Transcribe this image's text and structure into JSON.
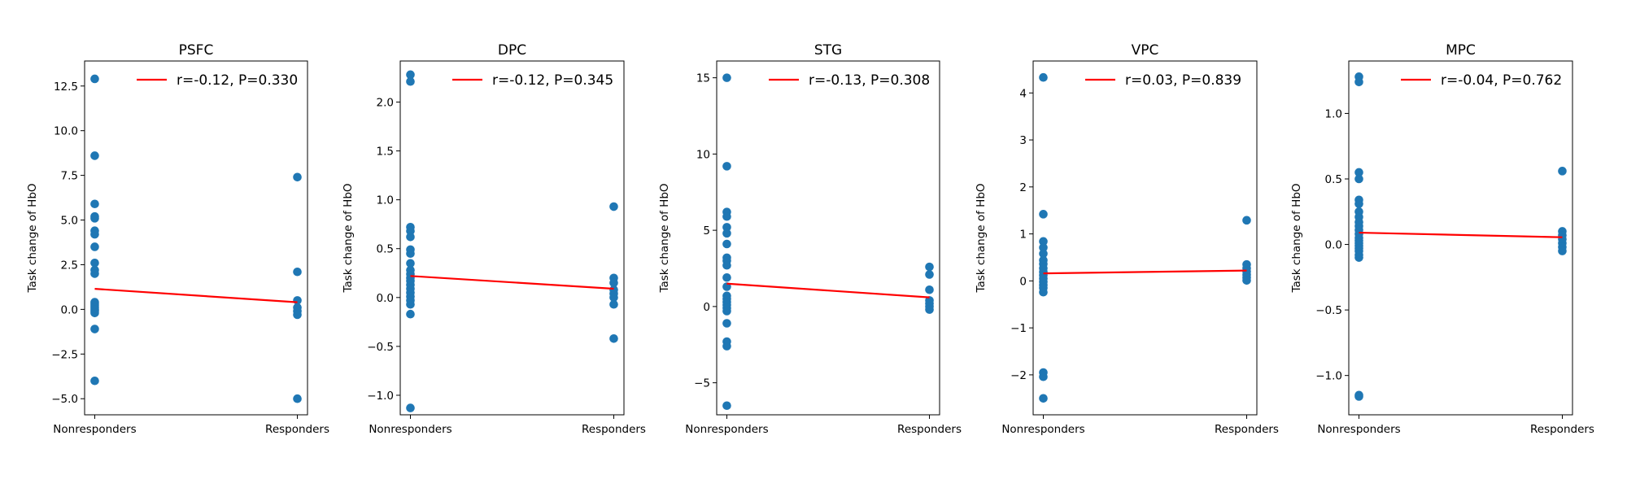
{
  "chart_data": [
    {
      "type": "scatter",
      "title": "PSFC",
      "xlabel": "",
      "ylabel": "Task change of HbO",
      "categories": [
        "Nonresponders",
        "Responders"
      ],
      "ylim": [
        -5.9,
        13.9
      ],
      "yticks": [
        -5.0,
        -2.5,
        0.0,
        2.5,
        5.0,
        7.5,
        10.0,
        12.5
      ],
      "ytick_labels": [
        "−5.0",
        "−2.5",
        "0.0",
        "2.5",
        "5.0",
        "7.5",
        "10.0",
        "12.5"
      ],
      "points": {
        "Nonresponders": [
          12.9,
          8.6,
          5.9,
          5.2,
          5.1,
          4.4,
          4.2,
          3.5,
          2.6,
          2.2,
          2.0,
          0.4,
          0.3,
          0.2,
          0.1,
          0.0,
          -0.1,
          -0.2,
          -1.1,
          -4.0
        ],
        "Responders": [
          7.4,
          2.1,
          0.5,
          0.1,
          -0.1,
          -0.3,
          -5.0
        ]
      },
      "fit_line": {
        "start": 1.15,
        "end": 0.4
      },
      "legend": {
        "label": "r=-0.12, P=0.330",
        "placement": "upper right"
      }
    },
    {
      "type": "scatter",
      "title": "DPC",
      "xlabel": "",
      "ylabel": "Task change of HbO",
      "categories": [
        "Nonresponders",
        "Responders"
      ],
      "ylim": [
        -1.2,
        2.42
      ],
      "yticks": [
        -1.0,
        -0.5,
        0.0,
        0.5,
        1.0,
        1.5,
        2.0
      ],
      "ytick_labels": [
        "−1.0",
        "−0.5",
        "0.0",
        "0.5",
        "1.0",
        "1.5",
        "2.0"
      ],
      "points": {
        "Nonresponders": [
          2.28,
          2.21,
          0.72,
          0.68,
          0.62,
          0.49,
          0.45,
          0.35,
          0.28,
          0.24,
          0.2,
          0.17,
          0.13,
          0.09,
          0.05,
          0.01,
          -0.03,
          -0.07,
          -0.17,
          -1.13
        ],
        "Responders": [
          0.93,
          0.2,
          0.15,
          0.08,
          0.04,
          0.0,
          -0.07,
          -0.42
        ]
      },
      "fit_line": {
        "start": 0.22,
        "end": 0.09
      },
      "legend": {
        "label": "r=-0.12, P=0.345",
        "placement": "upper right"
      }
    },
    {
      "type": "scatter",
      "title": "STG",
      "xlabel": "",
      "ylabel": "Task change of HbO",
      "categories": [
        "Nonresponders",
        "Responders"
      ],
      "ylim": [
        -7.1,
        16.1
      ],
      "yticks": [
        -5,
        0,
        5,
        10,
        15
      ],
      "ytick_labels": [
        "−5",
        "0",
        "5",
        "10",
        "15"
      ],
      "points": {
        "Nonresponders": [
          15.0,
          9.2,
          6.2,
          5.9,
          5.2,
          4.8,
          4.1,
          3.2,
          3.0,
          2.7,
          1.9,
          1.3,
          0.7,
          0.5,
          0.3,
          0.1,
          -0.1,
          -0.3,
          -1.1,
          -2.3,
          -2.6,
          -6.5
        ],
        "Responders": [
          2.6,
          2.1,
          1.1,
          0.4,
          0.2,
          0.0,
          -0.2
        ]
      },
      "fit_line": {
        "start": 1.5,
        "end": 0.6
      },
      "legend": {
        "label": "r=-0.13, P=0.308",
        "placement": "upper right"
      }
    },
    {
      "type": "scatter",
      "title": "VPC",
      "xlabel": "",
      "ylabel": "Task change of HbO",
      "categories": [
        "Nonresponders",
        "Responders"
      ],
      "ylim": [
        -2.85,
        4.68
      ],
      "yticks": [
        -2,
        -1,
        0,
        1,
        2,
        3,
        4
      ],
      "ytick_labels": [
        "−2",
        "−1",
        "0",
        "1",
        "2",
        "3",
        "4"
      ],
      "points": {
        "Nonresponders": [
          4.33,
          1.42,
          0.84,
          0.71,
          0.58,
          0.44,
          0.36,
          0.27,
          0.19,
          0.12,
          0.05,
          -0.02,
          -0.09,
          -0.15,
          -0.24,
          -1.95,
          -2.04,
          -2.5
        ],
        "Responders": [
          1.29,
          0.35,
          0.27,
          0.2,
          0.13,
          0.07,
          0.01
        ]
      },
      "fit_line": {
        "start": 0.16,
        "end": 0.22
      },
      "legend": {
        "label": "r=0.03, P=0.839",
        "placement": "upper right"
      }
    },
    {
      "type": "scatter",
      "title": "MPC",
      "xlabel": "",
      "ylabel": "Task change of HbO",
      "categories": [
        "Nonresponders",
        "Responders"
      ],
      "ylim": [
        -1.3,
        1.4
      ],
      "yticks": [
        -1.0,
        -0.5,
        0.0,
        0.5,
        1.0
      ],
      "ytick_labels": [
        "−1.0",
        "−0.5",
        "0.0",
        "0.5",
        "1.0"
      ],
      "points": {
        "Nonresponders": [
          1.28,
          1.24,
          0.55,
          0.5,
          0.34,
          0.31,
          0.25,
          0.21,
          0.17,
          0.14,
          0.11,
          0.08,
          0.05,
          0.03,
          0.01,
          -0.01,
          -0.03,
          -0.05,
          -0.08,
          -0.1,
          -1.15,
          -1.16
        ],
        "Responders": [
          0.56,
          0.1,
          0.07,
          0.04,
          0.01,
          -0.02,
          -0.05
        ]
      },
      "fit_line": {
        "start": 0.09,
        "end": 0.055
      },
      "legend": {
        "label": "r=-0.04, P=0.762",
        "placement": "upper right"
      }
    }
  ],
  "colors": {
    "points": "#1f77b4",
    "fit_line": "#ff0000",
    "axes": "#000000"
  }
}
